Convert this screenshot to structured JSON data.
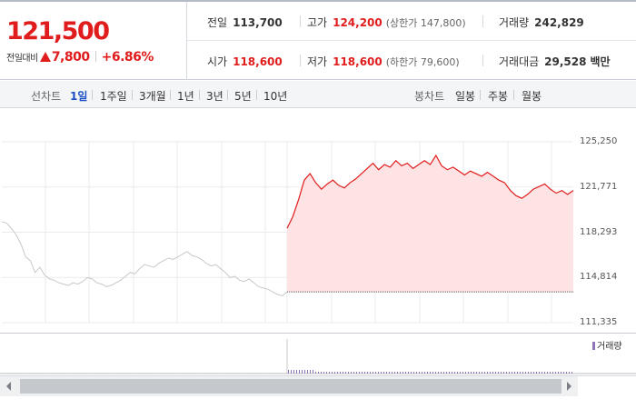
{
  "quote": {
    "current_price": "121,500",
    "change_label": "전일대비",
    "change_value": "7,800",
    "change_rate": "+6.86%",
    "change_direction": "up"
  },
  "stats": {
    "prev_close": {
      "label": "전일",
      "value": "113,700"
    },
    "high": {
      "label": "고가",
      "value": "124,200",
      "sub": "(상한가 147,800)"
    },
    "volume": {
      "label": "거래량",
      "value": "242,829"
    },
    "open": {
      "label": "시가",
      "value": "118,600"
    },
    "low": {
      "label": "저가",
      "value": "118,600",
      "sub": "(하한가 79,600)"
    },
    "trade_value": {
      "label": "거래대금",
      "value": "29,528",
      "unit": "백만"
    }
  },
  "tabs": {
    "line_label": "선차트",
    "line_items": [
      "1일",
      "1주일",
      "3개월",
      "1년",
      "3년",
      "5년",
      "10년"
    ],
    "active_item": "1일",
    "candle_label": "봉차트",
    "candle_items": [
      "일봉",
      "주봉",
      "월봉"
    ]
  },
  "colors": {
    "up": "#e01c1c",
    "area_fill": "#fde3e3",
    "prev_day_line": "#c8c8c8",
    "volume_bar": "#8e74b8",
    "active_tab": "#1d4fc4"
  },
  "chart_data": {
    "type": "line",
    "y_ticks": [
      "125,250",
      "121,771",
      "118,293",
      "114,814",
      "111,335"
    ],
    "ylim": [
      111335,
      125250
    ],
    "reference_line": 113700,
    "series": [
      {
        "role": "previous-day",
        "color": "#c8c8c8",
        "values": [
          119100,
          119000,
          118600,
          118100,
          117400,
          116400,
          116100,
          115200,
          115600,
          115000,
          114700,
          114600,
          114400,
          114300,
          114200,
          114400,
          114300,
          114500,
          114800,
          114700,
          114400,
          114300,
          114100,
          114200,
          114400,
          114600,
          114900,
          115200,
          115100,
          115500,
          115800,
          115700,
          115600,
          115900,
          116100,
          116300,
          116200,
          116400,
          116600,
          116800,
          116500,
          116400,
          116200,
          115900,
          115700,
          115800,
          115500,
          115200,
          114800,
          114900,
          114600,
          114500,
          114700,
          114400,
          114100,
          114000,
          113900,
          113700,
          113500,
          113400,
          113700
        ]
      },
      {
        "role": "today",
        "color": "#e01c1c",
        "values": [
          118600,
          119500,
          120800,
          122300,
          122800,
          122100,
          121600,
          122000,
          122300,
          121900,
          121700,
          122100,
          122400,
          122800,
          123200,
          123600,
          123100,
          123500,
          123300,
          123800,
          123400,
          123600,
          123200,
          123500,
          123800,
          123500,
          124200,
          123400,
          123100,
          123300,
          123000,
          122700,
          123000,
          122800,
          122600,
          122900,
          122600,
          122300,
          122100,
          121500,
          121100,
          120900,
          121200,
          121600,
          121800,
          122000,
          121600,
          121300,
          121500,
          121200,
          121500
        ]
      }
    ]
  },
  "volume_legend": "거래량"
}
